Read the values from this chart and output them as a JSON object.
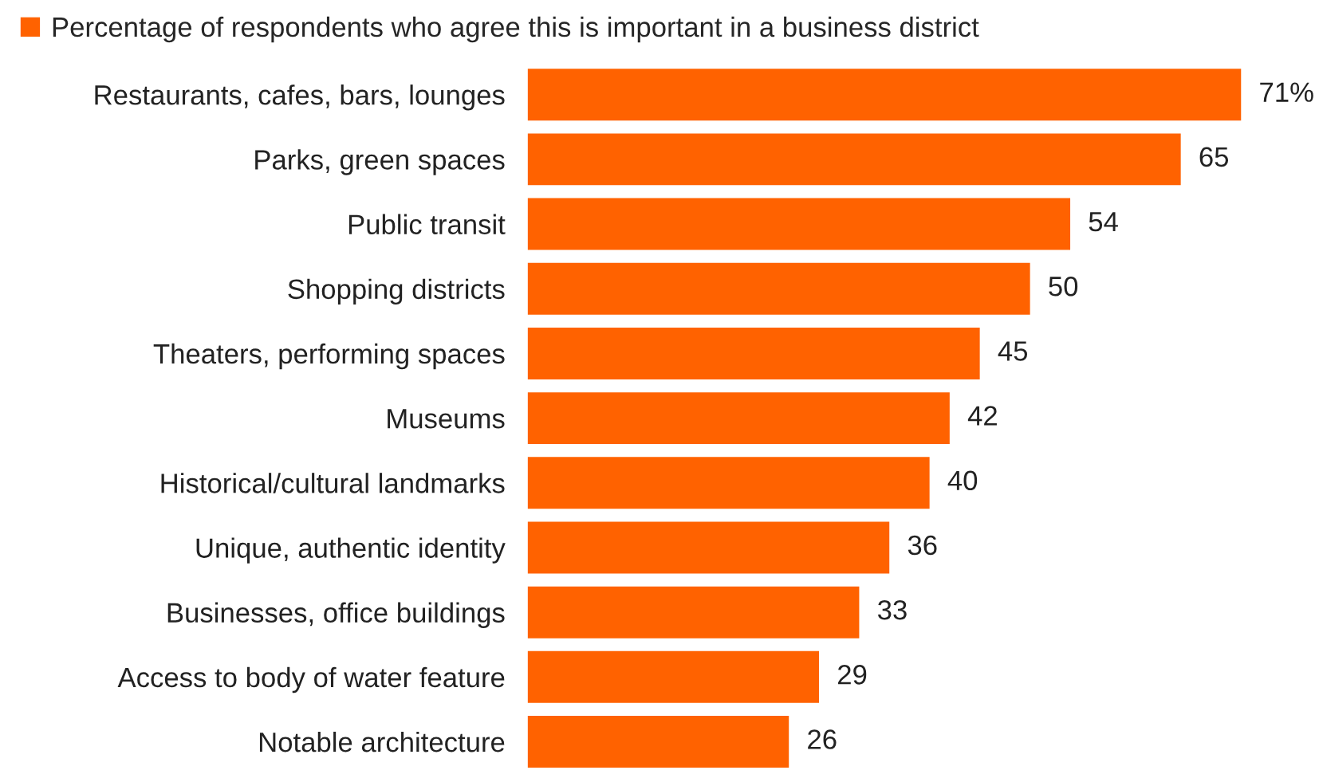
{
  "chart_data": {
    "type": "bar",
    "orientation": "horizontal",
    "categories": [
      "Restaurants, cafes, bars, lounges",
      "Parks, green spaces",
      "Public transit",
      "Shopping districts",
      "Theaters, performing spaces",
      "Museums",
      "Historical/cultural landmarks",
      "Unique, authentic identity",
      "Businesses, office buildings",
      "Access to body of water feature",
      "Notable architecture"
    ],
    "series": [
      {
        "name": "Percentage of respondents who agree this is important in a business district",
        "color": "#ff6200",
        "values": [
          71,
          65,
          54,
          50,
          45,
          42,
          40,
          36,
          33,
          29,
          26
        ],
        "value_labels": [
          "71%",
          "65",
          "54",
          "50",
          "45",
          "42",
          "40",
          "36",
          "33",
          "29",
          "26"
        ]
      }
    ],
    "tick_labels": "y",
    "legend": "top left",
    "grid": false
  }
}
